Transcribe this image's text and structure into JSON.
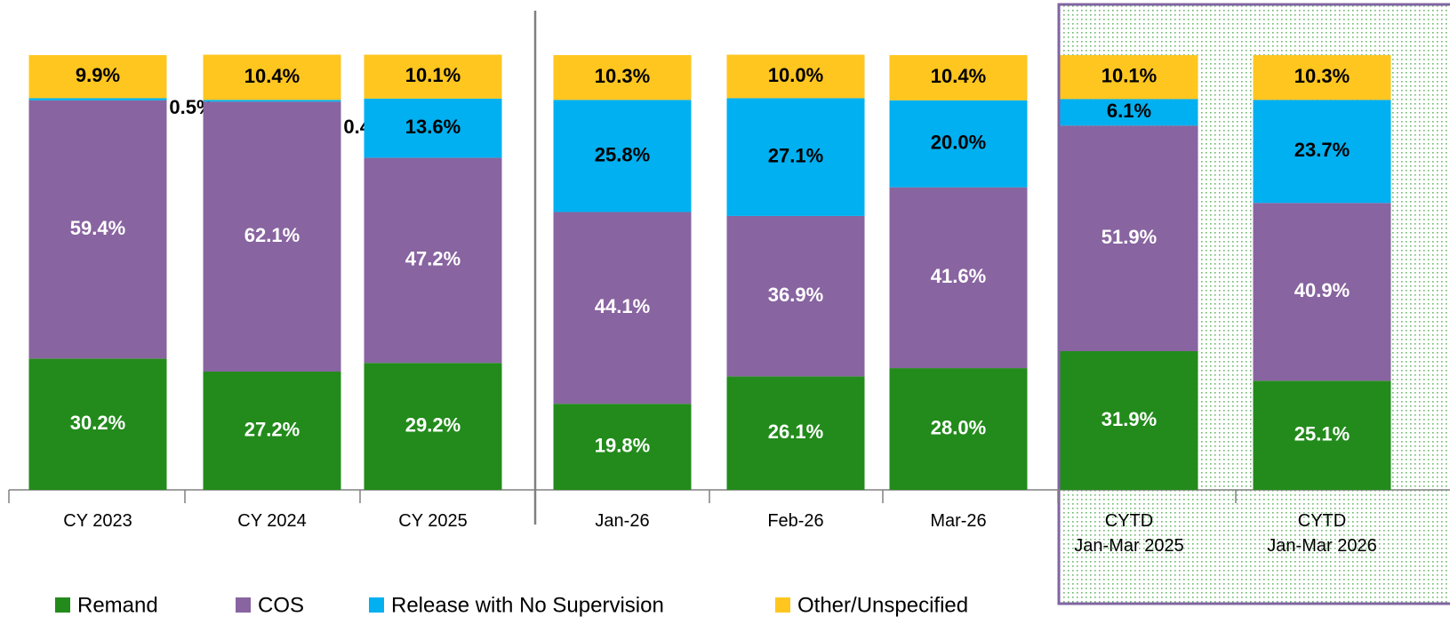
{
  "chart_data": {
    "type": "stacked_bar",
    "categories": [
      "CY 2023",
      "CY 2024",
      "CY 2025",
      "Jan-26",
      "Feb-26",
      "Mar-26",
      "CYTD\nJan-Mar 2025",
      "CYTD\nJan-Mar 2026"
    ],
    "ylim": [
      0,
      100
    ],
    "legend": "bottom",
    "series": [
      {
        "name": "Remand",
        "color": "#228b1b",
        "values": [
          30.2,
          27.2,
          29.2,
          19.8,
          26.1,
          28.0,
          31.9,
          25.1
        ],
        "value_labels": [
          "30.2%",
          "27.2%",
          "29.2%",
          "19.8%",
          "26.1%",
          "28.0%",
          "31.9%",
          "25.1%"
        ]
      },
      {
        "name": "COS",
        "color": "#8864a0",
        "values": [
          59.4,
          62.1,
          47.2,
          44.1,
          36.9,
          41.6,
          51.9,
          40.9
        ],
        "value_labels": [
          "59.4%",
          "62.1%",
          "47.2%",
          "44.1%",
          "36.9%",
          "41.6%",
          "51.9%",
          "40.9%"
        ]
      },
      {
        "name": "Release with No Supervision",
        "color": "#00b0f0",
        "values": [
          0.5,
          0.4,
          13.6,
          25.8,
          27.1,
          20.0,
          6.1,
          23.7
        ],
        "value_labels": [
          "0.5%",
          "0.4%",
          "13.6%",
          "25.8%",
          "27.1%",
          "20.0%",
          "6.1%",
          "23.7%"
        ]
      },
      {
        "name": "Other/Unspecified",
        "color": "#ffc620",
        "values": [
          9.9,
          10.4,
          10.1,
          10.3,
          10.0,
          10.4,
          10.1,
          10.3
        ],
        "value_labels": [
          "9.9%",
          "10.4%",
          "10.1%",
          "10.3%",
          "10.0%",
          "10.4%",
          "10.1%",
          "10.3%"
        ]
      }
    ]
  }
}
